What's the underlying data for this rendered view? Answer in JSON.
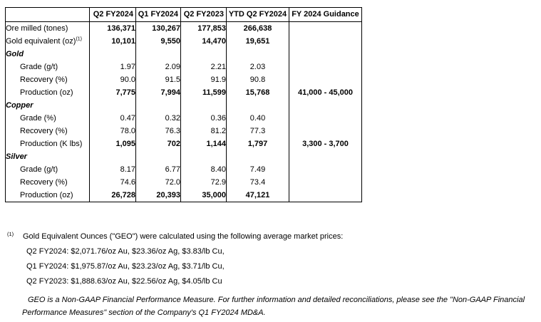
{
  "table": {
    "columns": [
      "",
      "Q2 FY2024",
      "Q1 FY2024",
      "Q2 FY2023",
      "YTD Q2 FY2024",
      "FY 2024 Guidance"
    ],
    "rows": [
      {
        "type": "data",
        "label": "Ore milled (tones)",
        "sup": "",
        "indent": false,
        "bold_values": true,
        "values": [
          "136,371",
          "130,267",
          "177,853",
          "266,638"
        ],
        "guidance": ""
      },
      {
        "type": "data",
        "label": "Gold equivalent (oz)",
        "sup": "(1)",
        "indent": false,
        "bold_values": true,
        "values": [
          "10,101",
          "9,550",
          "14,470",
          "19,651"
        ],
        "guidance": ""
      },
      {
        "type": "section",
        "label": "Gold"
      },
      {
        "type": "data",
        "label": "Grade (g/t)",
        "sup": "",
        "indent": true,
        "bold_values": false,
        "values": [
          "1.97",
          "2.09",
          "2.21",
          "2.03"
        ],
        "guidance": ""
      },
      {
        "type": "data",
        "label": "Recovery (%)",
        "sup": "",
        "indent": true,
        "bold_values": false,
        "values": [
          "90.0",
          "91.5",
          "91.9",
          "90.8"
        ],
        "guidance": ""
      },
      {
        "type": "data",
        "label": "Production (oz)",
        "sup": "",
        "indent": true,
        "bold_values": true,
        "values": [
          "7,775",
          "7,994",
          "11,599",
          "15,768"
        ],
        "guidance": "41,000 - 45,000"
      },
      {
        "type": "section",
        "label": "Copper"
      },
      {
        "type": "data",
        "label": "Grade (%)",
        "sup": "",
        "indent": true,
        "bold_values": false,
        "values": [
          "0.47",
          "0.32",
          "0.36",
          "0.40"
        ],
        "guidance": ""
      },
      {
        "type": "data",
        "label": "Recovery (%)",
        "sup": "",
        "indent": true,
        "bold_values": false,
        "values": [
          "78.0",
          "76.3",
          "81.2",
          "77.3"
        ],
        "guidance": ""
      },
      {
        "type": "data",
        "label": "Production (K lbs)",
        "sup": "",
        "indent": true,
        "bold_values": true,
        "values": [
          "1,095",
          "702",
          "1,144",
          "1,797"
        ],
        "guidance": "3,300 - 3,700"
      },
      {
        "type": "section",
        "label": "Silver"
      },
      {
        "type": "data",
        "label": "Grade (g/t)",
        "sup": "",
        "indent": true,
        "bold_values": false,
        "values": [
          "8.17",
          "6.77",
          "8.40",
          "7.49"
        ],
        "guidance": ""
      },
      {
        "type": "data",
        "label": "Recovery (%)",
        "sup": "",
        "indent": true,
        "bold_values": false,
        "values": [
          "74.6",
          "72.0",
          "72.9",
          "73.4"
        ],
        "guidance": ""
      },
      {
        "type": "data",
        "label": "Production (oz)",
        "sup": "",
        "indent": true,
        "bold_values": true,
        "values": [
          "26,728",
          "20,393",
          "35,000",
          "47,121"
        ],
        "guidance": ""
      }
    ]
  },
  "footnote": {
    "marker": "(1)",
    "intro": "Gold Equivalent Ounces (\"GEO\") were calculated using the following average market prices:",
    "lines": [
      "Q2 FY2024: $2,071.76/oz Au, $23.36/oz Ag, $3.83/lb Cu,",
      "Q1 FY2024: $1,975.87/oz Au, $23.23/oz Ag, $3.71/lb Cu,",
      "Q2 FY2023: $1,888.63/oz Au, $22.56/oz Ag, $4.05/lb Cu"
    ]
  },
  "disclaimer": "GEO is a Non-GAAP Financial Performance Measure. For further information and detailed reconciliations, please see the \"Non-GAAP Financial Performance Measures\" section of the Company's Q1 FY2024 MD&A."
}
